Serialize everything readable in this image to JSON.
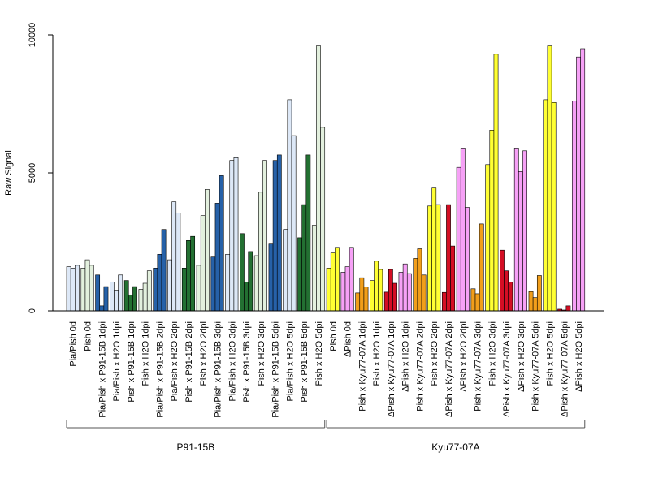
{
  "chart_data": {
    "type": "bar",
    "ylabel": "Raw Signal",
    "ylim": [
      0,
      10000
    ],
    "yticks": [
      0,
      5000,
      10000
    ],
    "bars_per_category": 3,
    "categories": [
      {
        "label": "Pia/Pish 0d",
        "color": "#dde8f7",
        "values": [
          1600,
          1550,
          1650
        ]
      },
      {
        "label": "Pish 0d",
        "color": "#e3f0de",
        "values": [
          1550,
          1850,
          1650
        ]
      },
      {
        "label": "Pia/Pish x P91-15B 1dpi",
        "color": "#2661a8",
        "values": [
          1300,
          180,
          880
        ]
      },
      {
        "label": "Pia/Pish x H2O 1dpi",
        "color": "#dde8f7",
        "values": [
          1050,
          750,
          1300
        ]
      },
      {
        "label": "Pish x P91-15B 1dpi",
        "color": "#237032",
        "values": [
          1100,
          580,
          880
        ]
      },
      {
        "label": "Pish x H2O 1dpi",
        "color": "#e3f0de",
        "values": [
          780,
          1000,
          1450
        ]
      },
      {
        "label": "Pia/Pish x P91-15B 2dpi",
        "color": "#2661a8",
        "values": [
          1550,
          2050,
          2950
        ]
      },
      {
        "label": "Pia/Pish x H2O 2dpi",
        "color": "#dde8f7",
        "values": [
          1850,
          3950,
          3550
        ]
      },
      {
        "label": "Pish x P91-15B 2dpi",
        "color": "#237032",
        "values": [
          1550,
          2550,
          2700
        ]
      },
      {
        "label": "Pish x H2O 2dpi",
        "color": "#e3f0de",
        "values": [
          1650,
          3450,
          4400
        ]
      },
      {
        "label": "Pia/Pish x P91-15B 3dpi",
        "color": "#2661a8",
        "values": [
          1950,
          3900,
          4900
        ]
      },
      {
        "label": "Pia/Pish x H2O 3dpi",
        "color": "#dde8f7",
        "values": [
          2050,
          5450,
          5550
        ]
      },
      {
        "label": "Pish x P91-15B 3dpi",
        "color": "#237032",
        "values": [
          2800,
          1050,
          2150
        ]
      },
      {
        "label": "Pish x H2O 3dpi",
        "color": "#e3f0de",
        "values": [
          2000,
          4300,
          5450
        ]
      },
      {
        "label": "Pia/Pish x P91-15B 5dpi",
        "color": "#2661a8",
        "values": [
          2450,
          5450,
          5650
        ]
      },
      {
        "label": "Pia/Pish x H2O 5dpi",
        "color": "#dde8f7",
        "values": [
          2950,
          7650,
          6350
        ]
      },
      {
        "label": "Pish x P91-15B 5dpi",
        "color": "#237032",
        "values": [
          2650,
          3850,
          5650
        ]
      },
      {
        "label": "Pish x H2O 5dpi",
        "color": "#e3f0de",
        "values": [
          3100,
          9600,
          6650
        ]
      },
      {
        "label": "Pish 0d",
        "color": "#ffff33",
        "values": [
          1550,
          2100,
          2300
        ]
      },
      {
        "label": "ΔPish 0d",
        "color": "#f6a1f6",
        "values": [
          1400,
          1600,
          2300
        ]
      },
      {
        "label": "Pish x Kyu77-07A 1dpi",
        "color": "#f19e1b",
        "values": [
          650,
          1200,
          870
        ]
      },
      {
        "label": "Pish x H2O 1dpi",
        "color": "#ffff33",
        "values": [
          1100,
          1800,
          1500
        ]
      },
      {
        "label": "ΔPish x Kyu77-07A 1dpi",
        "color": "#d40e24",
        "values": [
          680,
          1500,
          1000
        ]
      },
      {
        "label": "ΔPish x H2O 1dpi",
        "color": "#f6a1f6",
        "values": [
          1400,
          1700,
          1350
        ]
      },
      {
        "label": "Pish x Kyu77-07A 2dpi",
        "color": "#f19e1b",
        "values": [
          1900,
          2250,
          1300
        ]
      },
      {
        "label": "Pish x H2O 2dpi",
        "color": "#ffff33",
        "values": [
          3800,
          4450,
          3850
        ]
      },
      {
        "label": "ΔPish x Kyu77-07A 2dpi",
        "color": "#d40e24",
        "values": [
          670,
          3850,
          2350
        ]
      },
      {
        "label": "ΔPish x H2O 2dpi",
        "color": "#f6a1f6",
        "values": [
          5200,
          5900,
          3750
        ]
      },
      {
        "label": "Pish x Kyu77-07A 3dpi",
        "color": "#f19e1b",
        "values": [
          800,
          620,
          3150
        ]
      },
      {
        "label": "Pish x H2O 3dpi",
        "color": "#ffff33",
        "values": [
          5300,
          6550,
          9300
        ]
      },
      {
        "label": "ΔPish x Kyu77-07A 3dpi",
        "color": "#d40e24",
        "values": [
          2200,
          1450,
          1050
        ]
      },
      {
        "label": "ΔPish x H2O 3dpi",
        "color": "#f6a1f6",
        "values": [
          5900,
          5050,
          5800
        ]
      },
      {
        "label": "Pish x Kyu77-07A 5dpi",
        "color": "#f19e1b",
        "values": [
          700,
          480,
          1280
        ]
      },
      {
        "label": "Pish x H2O 5dpi",
        "color": "#ffff33",
        "values": [
          7650,
          9600,
          7550
        ]
      },
      {
        "label": "ΔPish x Kyu77-07A 5dpi",
        "color": "#d40e24",
        "values": [
          60,
          30,
          180
        ]
      },
      {
        "label": "ΔPish x H2O 5dpi",
        "color": "#f6a1f6",
        "values": [
          7600,
          9200,
          9500
        ]
      }
    ],
    "groups": [
      {
        "label": "P91-15B",
        "start": 0,
        "end": 17
      },
      {
        "label": "Kyu77-07A",
        "start": 18,
        "end": 35
      }
    ]
  }
}
